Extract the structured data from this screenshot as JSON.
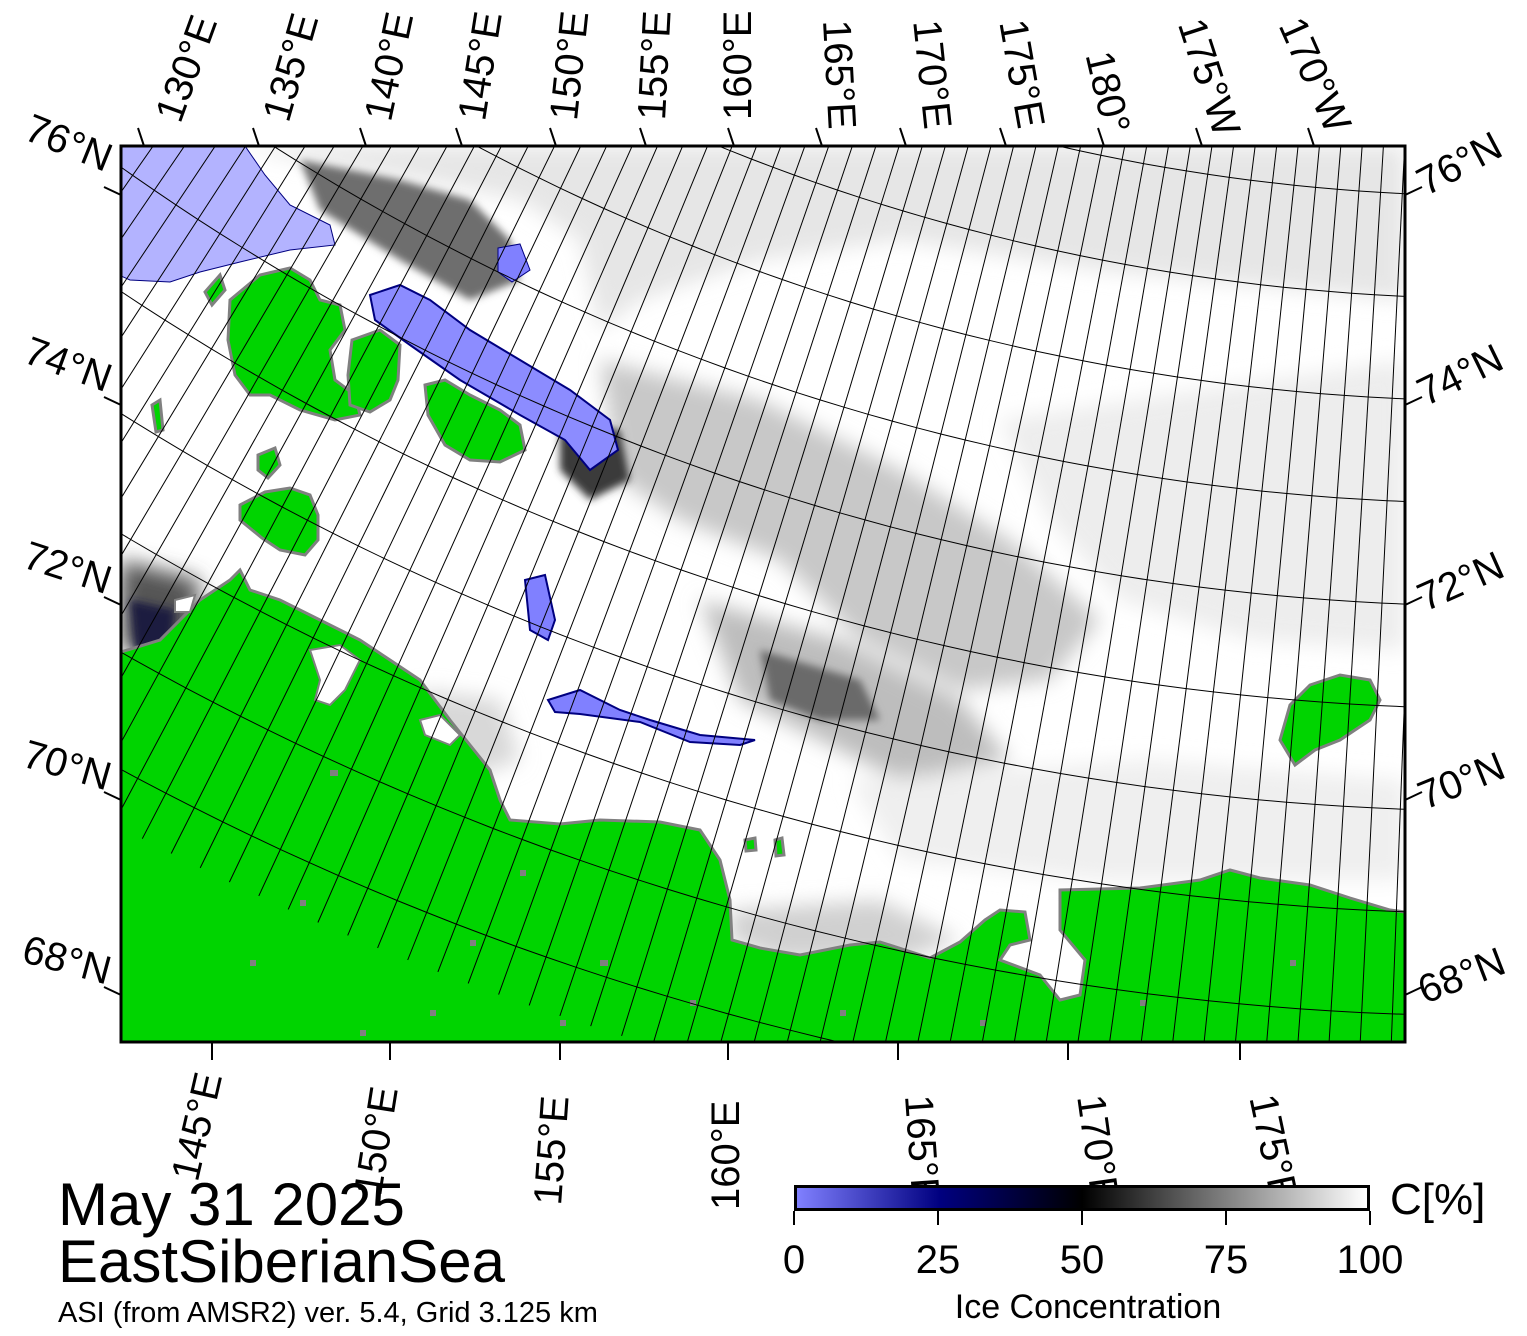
{
  "date": "May 31 2025",
  "region": "EastSiberianSea",
  "product": "ASI (from AMSR2) ver. 5.4,  Grid 3.125 km",
  "colors": {
    "land": "#00d400",
    "open_water": "#ffffff",
    "low_ice": "#8080ff",
    "mid_ice": "#000066",
    "high_ice": "#000000",
    "no_data": "#808080"
  },
  "graticule": {
    "top_labels": [
      "130°E",
      "135°E",
      "140°E",
      "145°E",
      "150°E",
      "155°E",
      "160°E",
      "165°E",
      "170°E",
      "175°E",
      "180°",
      "175°W",
      "170°W"
    ],
    "bottom_labels": [
      "145°E",
      "150°E",
      "155°E",
      "160°E",
      "165°E",
      "170°E",
      "175°E"
    ],
    "left_labels": [
      "76°N",
      "74°N",
      "72°N",
      "70°N",
      "68°N"
    ],
    "right_labels": [
      "76°N",
      "74°N",
      "72°N",
      "70°N",
      "68°N"
    ]
  },
  "legend": {
    "title": "Ice Concentration",
    "unit": "C[%]",
    "ticks": [
      "0",
      "25",
      "50",
      "75",
      "100"
    ],
    "gradient": [
      {
        "value": 0,
        "color": "#8080ff"
      },
      {
        "value": 25,
        "color": "#000080"
      },
      {
        "value": 50,
        "color": "#000000"
      },
      {
        "value": 100,
        "color": "#ffffff"
      }
    ]
  }
}
